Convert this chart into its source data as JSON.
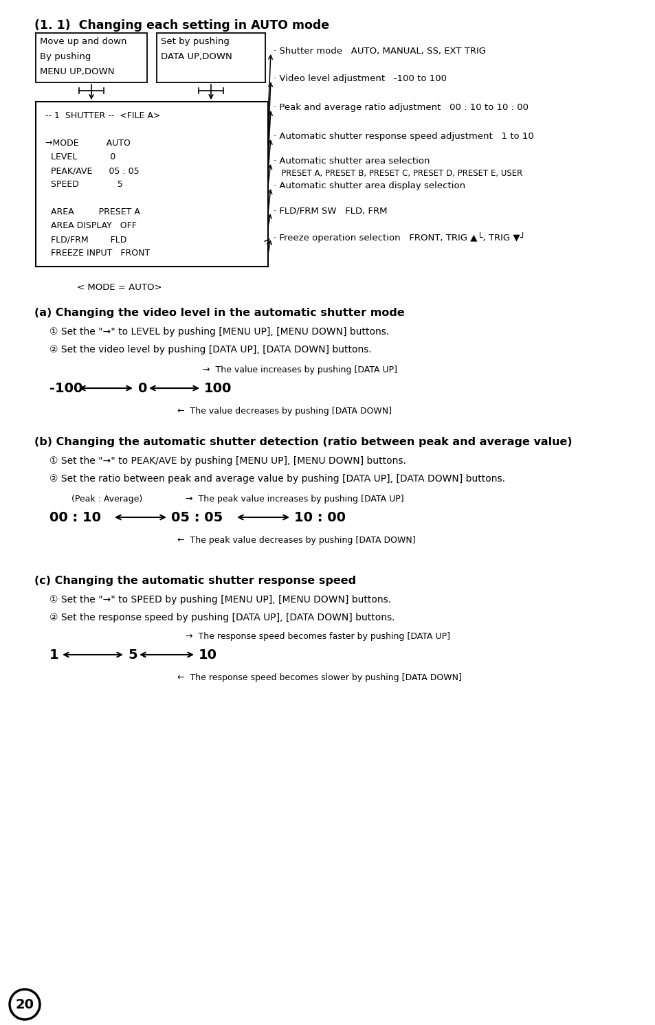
{
  "bg_color": "#ffffff",
  "page_number": "20",
  "section_title": "(1. 1)  Changing each setting in AUTO mode",
  "box1_lines": [
    "Move up and down",
    "By pushing",
    "MENU UP,DOWN"
  ],
  "box2_lines": [
    "Set by pushing",
    "DATA UP,DOWN"
  ],
  "menu_lines": [
    "-- 1  SHUTTER --  <FILE A>",
    "",
    "→MODE          AUTO",
    "  LEVEL            0",
    "  PEAK/AVE      05 : 05",
    "  SPEED              5",
    "",
    "  AREA         PRESET A",
    "  AREA DISPLAY   OFF",
    "  FLD/FRM        FLD",
    "  FREEZE INPUT   FRONT"
  ],
  "mode_label": "< MODE = AUTO>",
  "ann1": "· Shutter mode   AUTO, MANUAL, SS, EXT TRIG",
  "ann2": "· Video level adjustment   -100 to 100",
  "ann3": "· Peak and average ratio adjustment   00 : 10 to 10 : 00",
  "ann4": "· Automatic shutter response speed adjustment   1 to 10",
  "ann5a": "· Automatic shutter area selection",
  "ann5b": "   PRESET A, PRESET B, PRESET C, PRESET D, PRESET E, USER",
  "ann6": "· Automatic shutter area display selection",
  "ann7": "· FLD/FRM SW   FLD, FRM",
  "ann8": "· Freeze operation selection   FRONT, TRIG ▲└, TRIG ▼┘",
  "sec_a_title": "(a) Changing the video level in the automatic shutter mode",
  "sec_a_step1": "① Set the \"→\" to LEVEL by pushing [MENU UP], [MENU DOWN] buttons.",
  "sec_a_step2": "② Set the video level by pushing [DATA UP], [DATA DOWN] buttons.",
  "sec_a_arrow_up": "→  The value increases by pushing [DATA UP]",
  "sec_a_arrow_down": "←  The value decreases by pushing [DATA DOWN]",
  "sec_b_title": "(b) Changing the automatic shutter detection (ratio between peak and average value)",
  "sec_b_step1": "① Set the \"→\" to PEAK/AVE by pushing [MENU UP], [MENU DOWN] buttons.",
  "sec_b_step2": "② Set the ratio between peak and average value by pushing [DATA UP], [DATA DOWN] buttons.",
  "sec_b_peak_avg": "(Peak : Average)",
  "sec_b_arrow_up": "→  The peak value increases by pushing [DATA UP]",
  "sec_b_arrow_down": "←  The peak value decreases by pushing [DATA DOWN]",
  "sec_c_title": "(c) Changing the automatic shutter response speed",
  "sec_c_step1": "① Set the \"→\" to SPEED by pushing [MENU UP], [MENU DOWN] buttons.",
  "sec_c_step2": "② Set the response speed by pushing [DATA UP], [DATA DOWN] buttons.",
  "sec_c_arrow_up": "→  The response speed becomes faster by pushing [DATA UP]",
  "sec_c_arrow_down": "←  The response speed becomes slower by pushing [DATA DOWN]"
}
